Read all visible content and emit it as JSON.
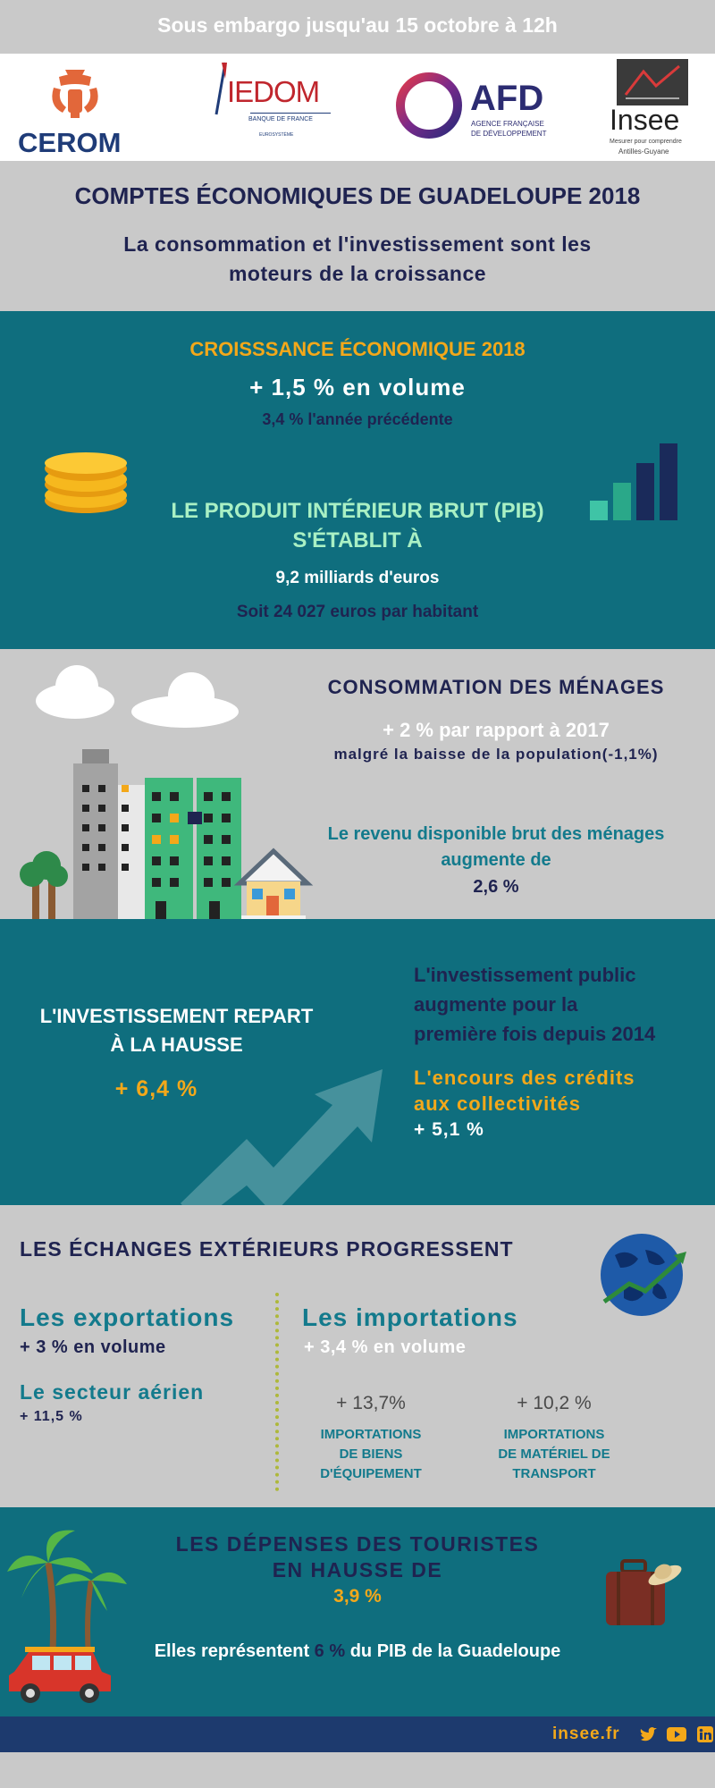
{
  "embargo": "Sous embargo jusqu'au 15 octobre à 12h",
  "logos": {
    "cerom": "CEROM",
    "iedom": "IEDOM",
    "iedom_sub": "BANQUE DE FRANCE",
    "iedom_sub2": "EUROSYSTÈME",
    "afd": "AFD",
    "afd_sub1": "AGENCE FRANÇAISE",
    "afd_sub2": "DE DÉVELOPPEMENT",
    "insee": "Insee",
    "insee_sub1": "Mesurer pour comprendre",
    "insee_sub2": "Antilles-Guyane"
  },
  "main_title": "COMPTES ÉCONOMIQUES DE GUADELOUPE 2018",
  "subtitle_line1": "La consommation et l'investissement sont les",
  "subtitle_line2": "moteurs de la croissance",
  "growth": {
    "heading": "CROISSSANCE ÉCONOMIQUE 2018",
    "value": "+ 1,5 % en volume",
    "previous": "3,4 % l'année précédente",
    "pib_line1": "LE PRODUIT INTÉRIEUR BRUT (PIB)",
    "pib_line2": "S'ÉTABLIT À",
    "pib_value": "9,2 milliards  d'euros",
    "per_capita": "Soit 24 027 euros par habitant"
  },
  "consumption": {
    "heading": "CONSOMMATION DES MÉNAGES",
    "value": "+ 2 % par rapport à 2017",
    "note": "malgré la baisse de la population(-1,1%)",
    "income_line1": "Le revenu disponible brut des ménages",
    "income_line2": "augmente de",
    "income_value": "2,6 %"
  },
  "investment": {
    "heading_line1": "L'INVESTISSEMENT REPART",
    "heading_line2": "À LA HAUSSE",
    "value": "+ 6,4 %",
    "public_line1": "L'investissement public",
    "public_line2": "augmente pour la",
    "public_line3": "première fois depuis 2014",
    "credits_line1": "L'encours des crédits",
    "credits_line2": "aux collectivités",
    "credits_value": "+ 5,1 %"
  },
  "exchanges": {
    "heading": "LES ÉCHANGES EXTÉRIEURS PROGRESSENT",
    "exports_title": "Les exportations",
    "exports_value": "+ 3 % en volume",
    "air_title": "Le secteur aérien",
    "air_value": "+ 11,5 %",
    "imports_title": "Les importations",
    "imports_value": "+ 3,4 % en volume",
    "equip_value": "+ 13,7%",
    "equip_label1": "IMPORTATIONS",
    "equip_label2": "DE BIENS",
    "equip_label3": "D'ÉQUIPEMENT",
    "transport_value": "+ 10,2 %",
    "transport_label1": "IMPORTATIONS",
    "transport_label2": "DE MATÉRIEL DE",
    "transport_label3": "TRANSPORT"
  },
  "tourism": {
    "heading_line1": "LES DÉPENSES DES TOURISTES",
    "heading_line2": "EN HAUSSE DE",
    "value": "3,9 %",
    "share_pre": "Elles représentent ",
    "share_value": "6 %",
    "share_post": " du PIB de la Guadeloupe"
  },
  "footer": {
    "site": "insee.fr"
  },
  "colors": {
    "teal": "#0f6e7e",
    "navy": "#1f2350",
    "gold": "#f3a81a",
    "grey": "#c9c9c9",
    "footer": "#1d3a6e"
  },
  "icons": [
    "coins-icon",
    "bar-chart-icon",
    "cloud-icon",
    "buildings-icon",
    "tree-icon",
    "house-icon",
    "trend-arrow-icon",
    "globe-icon",
    "palm-tree-icon",
    "car-icon",
    "suitcase-icon",
    "twitter-icon",
    "youtube-icon",
    "linkedin-icon"
  ]
}
